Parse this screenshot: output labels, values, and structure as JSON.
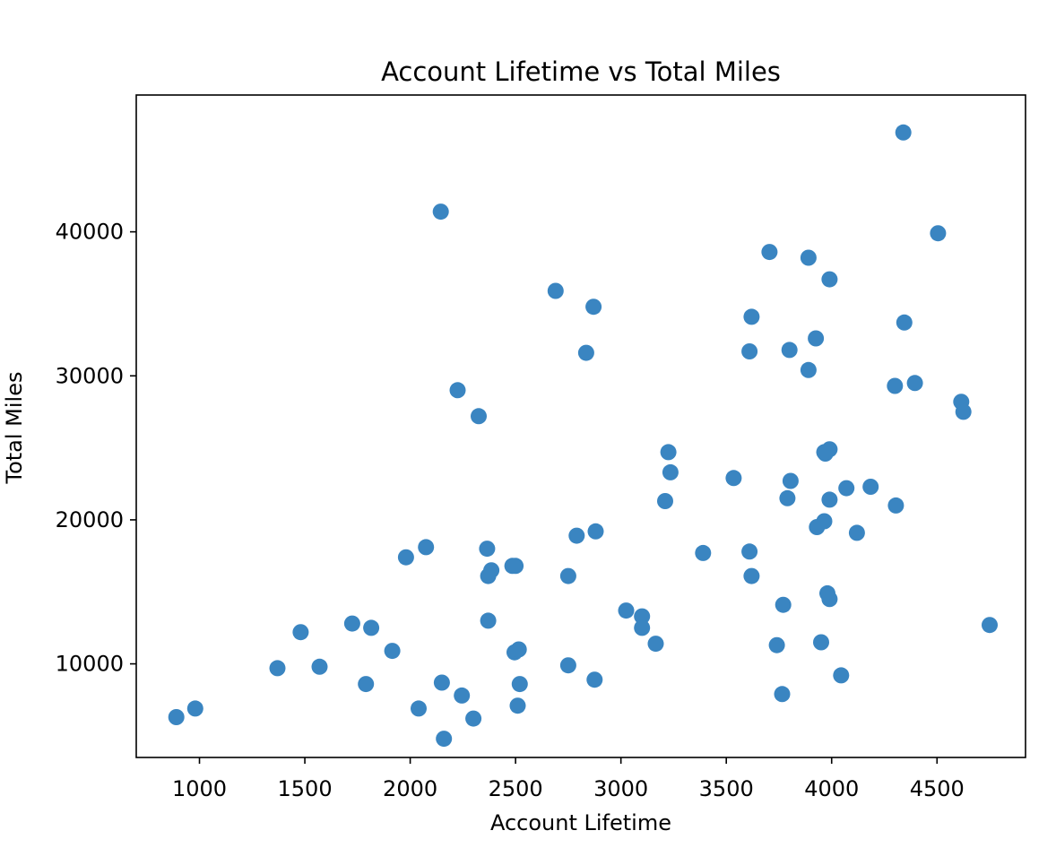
{
  "chart_data": {
    "type": "scatter",
    "title": "Account Lifetime vs Total Miles",
    "xlabel": "Account Lifetime",
    "ylabel": "Total Miles",
    "xlim": [
      700,
      4920
    ],
    "ylim": [
      3500,
      49500
    ],
    "xticks": [
      1000,
      1500,
      2000,
      2500,
      3000,
      3500,
      4000,
      4500
    ],
    "yticks": [
      10000,
      20000,
      30000,
      40000
    ],
    "grid": false,
    "legend": "none",
    "point_color": "#3a85c1",
    "points": [
      [
        890,
        6300
      ],
      [
        980,
        6900
      ],
      [
        1370,
        9700
      ],
      [
        1480,
        12200
      ],
      [
        1570,
        9800
      ],
      [
        1725,
        12800
      ],
      [
        1790,
        8600
      ],
      [
        1815,
        12500
      ],
      [
        1915,
        10900
      ],
      [
        1980,
        17400
      ],
      [
        2040,
        6900
      ],
      [
        2075,
        18100
      ],
      [
        2145,
        41400
      ],
      [
        2150,
        8700
      ],
      [
        2160,
        4800
      ],
      [
        2225,
        29000
      ],
      [
        2245,
        7800
      ],
      [
        2300,
        6200
      ],
      [
        2325,
        27200
      ],
      [
        2365,
        18000
      ],
      [
        2370,
        16100
      ],
      [
        2370,
        13000
      ],
      [
        2385,
        16500
      ],
      [
        2485,
        16800
      ],
      [
        2500,
        16800
      ],
      [
        2495,
        10800
      ],
      [
        2510,
        7100
      ],
      [
        2515,
        11000
      ],
      [
        2520,
        8600
      ],
      [
        2690,
        35900
      ],
      [
        2750,
        16100
      ],
      [
        2750,
        9900
      ],
      [
        2790,
        18900
      ],
      [
        2835,
        31600
      ],
      [
        2870,
        34800
      ],
      [
        2875,
        8900
      ],
      [
        2880,
        19200
      ],
      [
        3025,
        13700
      ],
      [
        3100,
        13300
      ],
      [
        3100,
        12500
      ],
      [
        3165,
        11400
      ],
      [
        3210,
        21300
      ],
      [
        3225,
        24700
      ],
      [
        3235,
        23300
      ],
      [
        3390,
        17700
      ],
      [
        3535,
        22900
      ],
      [
        3610,
        31700
      ],
      [
        3610,
        17800
      ],
      [
        3620,
        34100
      ],
      [
        3620,
        16100
      ],
      [
        3705,
        38600
      ],
      [
        3740,
        11300
      ],
      [
        3765,
        7900
      ],
      [
        3770,
        14100
      ],
      [
        3790,
        21500
      ],
      [
        3800,
        31800
      ],
      [
        3805,
        22700
      ],
      [
        3890,
        38200
      ],
      [
        3890,
        30400
      ],
      [
        3925,
        32600
      ],
      [
        3930,
        19500
      ],
      [
        3950,
        11500
      ],
      [
        3965,
        19900
      ],
      [
        3965,
        24700
      ],
      [
        3970,
        24600
      ],
      [
        3980,
        14900
      ],
      [
        3990,
        36700
      ],
      [
        3990,
        24900
      ],
      [
        3990,
        21400
      ],
      [
        3990,
        14500
      ],
      [
        4045,
        9200
      ],
      [
        4070,
        22200
      ],
      [
        4120,
        19100
      ],
      [
        4185,
        22300
      ],
      [
        4300,
        29300
      ],
      [
        4305,
        21000
      ],
      [
        4340,
        46900
      ],
      [
        4345,
        33700
      ],
      [
        4395,
        29500
      ],
      [
        4505,
        39900
      ],
      [
        4615,
        28200
      ],
      [
        4625,
        27500
      ],
      [
        4750,
        12700
      ]
    ]
  }
}
